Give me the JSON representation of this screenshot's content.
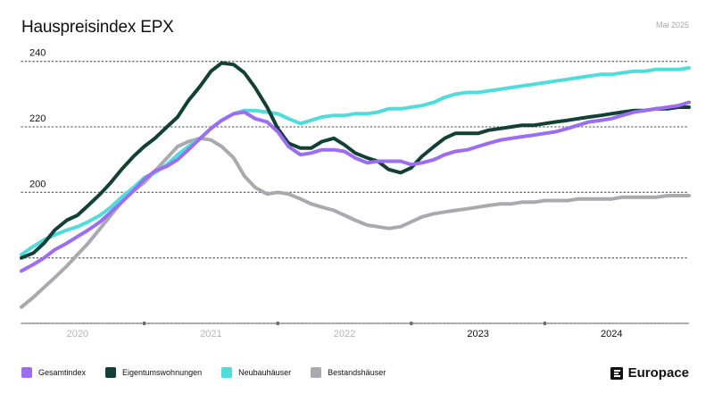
{
  "title": "Hauspreisindex EPX",
  "date_label": "Mai 2025",
  "brand": {
    "name": "Europace"
  },
  "colors": {
    "gesamtindex": "#9c6cf2",
    "eigentum": "#123f36",
    "neubau": "#4fdcdc",
    "bestand": "#a9a9b0",
    "grid": "#6b6b6b",
    "axis": "#6b6b6b",
    "tick_text": "#b5b5b5"
  },
  "chart_data": {
    "type": "line",
    "title": "Hauspreisindex EPX",
    "xlabel": "",
    "ylabel": "",
    "xlim": [
      2019.58,
      2024.58
    ],
    "ylim": [
      160,
      250
    ],
    "y_ticks": [
      160,
      180,
      200,
      220,
      240
    ],
    "y_tick_labels": [
      "",
      "",
      "200",
      "220",
      "240"
    ],
    "x_ticks": [
      2020,
      2021,
      2022,
      2023,
      2024
    ],
    "x_tick_labels": [
      "2020",
      "2021",
      "2022",
      "2023",
      "2024"
    ],
    "x_tick_emphasis": [
      false,
      false,
      false,
      true,
      true
    ],
    "x_dividers": [
      2020.5,
      2021.5,
      2022.5,
      2023.5
    ],
    "grid": true,
    "legend_position": "bottom-left",
    "series": [
      {
        "name": "Gesamtindex",
        "color_key": "gesamtindex",
        "x": [
          2019.58,
          2019.67,
          2019.75,
          2019.83,
          2019.92,
          2020.0,
          2020.08,
          2020.17,
          2020.25,
          2020.33,
          2020.42,
          2020.5,
          2020.58,
          2020.67,
          2020.75,
          2020.83,
          2020.92,
          2021.0,
          2021.08,
          2021.17,
          2021.25,
          2021.33,
          2021.42,
          2021.5,
          2021.58,
          2021.67,
          2021.75,
          2021.83,
          2021.92,
          2022.0,
          2022.08,
          2022.17,
          2022.25,
          2022.33,
          2022.42,
          2022.5,
          2022.58,
          2022.67,
          2022.75,
          2022.83,
          2022.92,
          2023.0,
          2023.08,
          2023.17,
          2023.25,
          2023.33,
          2023.42,
          2023.5,
          2023.58,
          2023.67,
          2023.75,
          2023.83,
          2023.92,
          2024.0,
          2024.08,
          2024.17,
          2024.25,
          2024.33,
          2024.42,
          2024.5,
          2024.58
        ],
        "values": [
          176.0,
          178.0,
          180.0,
          182.5,
          184.5,
          186.5,
          188.5,
          191.0,
          194.0,
          197.0,
          200.5,
          204.0,
          206.5,
          208.0,
          210.0,
          213.0,
          216.5,
          219.5,
          222.0,
          224.0,
          224.5,
          222.5,
          221.5,
          218.5,
          214.0,
          211.5,
          212.0,
          213.0,
          213.0,
          212.5,
          210.5,
          209.0,
          209.5,
          209.5,
          209.5,
          208.5,
          209.0,
          210.0,
          211.5,
          212.5,
          213.0,
          214.0,
          215.0,
          216.0,
          216.5,
          217.0,
          217.5,
          218.0,
          218.5,
          219.5,
          220.5,
          221.5,
          222.0,
          222.5,
          223.5,
          224.5,
          225.0,
          225.5,
          226.0,
          226.5,
          227.5
        ]
      },
      {
        "name": "Eigentumswohnungen",
        "color_key": "eigentum",
        "x": [
          2019.58,
          2019.67,
          2019.75,
          2019.83,
          2019.92,
          2020.0,
          2020.08,
          2020.17,
          2020.25,
          2020.33,
          2020.42,
          2020.5,
          2020.58,
          2020.67,
          2020.75,
          2020.83,
          2020.92,
          2021.0,
          2021.08,
          2021.17,
          2021.25,
          2021.33,
          2021.42,
          2021.5,
          2021.58,
          2021.67,
          2021.75,
          2021.83,
          2021.92,
          2022.0,
          2022.08,
          2022.17,
          2022.25,
          2022.33,
          2022.42,
          2022.5,
          2022.58,
          2022.67,
          2022.75,
          2022.83,
          2022.92,
          2023.0,
          2023.08,
          2023.17,
          2023.25,
          2023.33,
          2023.42,
          2023.5,
          2023.58,
          2023.67,
          2023.75,
          2023.83,
          2023.92,
          2024.0,
          2024.08,
          2024.17,
          2024.25,
          2024.33,
          2024.42,
          2024.5,
          2024.58
        ],
        "values": [
          180.0,
          181.5,
          184.5,
          188.5,
          191.5,
          193.0,
          196.0,
          199.5,
          203.0,
          207.0,
          211.0,
          214.0,
          216.5,
          220.0,
          223.0,
          228.0,
          232.5,
          237.0,
          239.5,
          239.0,
          236.5,
          232.0,
          226.0,
          219.5,
          215.0,
          213.5,
          213.5,
          215.5,
          216.5,
          214.5,
          212.0,
          210.5,
          209.5,
          207.0,
          206.0,
          207.5,
          211.0,
          214.0,
          216.5,
          218.0,
          218.0,
          218.0,
          219.0,
          219.5,
          220.0,
          220.5,
          220.5,
          221.0,
          221.5,
          222.0,
          222.5,
          223.0,
          223.5,
          224.0,
          224.5,
          225.0,
          225.0,
          225.5,
          225.5,
          226.0,
          226.0
        ]
      },
      {
        "name": "Neubauhäuser",
        "color_key": "neubau",
        "x": [
          2019.58,
          2019.67,
          2019.75,
          2019.83,
          2019.92,
          2020.0,
          2020.08,
          2020.17,
          2020.25,
          2020.33,
          2020.42,
          2020.5,
          2020.58,
          2020.67,
          2020.75,
          2020.83,
          2020.92,
          2021.0,
          2021.08,
          2021.17,
          2021.25,
          2021.33,
          2021.42,
          2021.5,
          2021.58,
          2021.67,
          2021.75,
          2021.83,
          2021.92,
          2022.0,
          2022.08,
          2022.17,
          2022.25,
          2022.33,
          2022.42,
          2022.5,
          2022.58,
          2022.67,
          2022.75,
          2022.83,
          2022.92,
          2023.0,
          2023.08,
          2023.17,
          2023.25,
          2023.33,
          2023.42,
          2023.5,
          2023.58,
          2023.67,
          2023.75,
          2023.83,
          2023.92,
          2024.0,
          2024.08,
          2024.17,
          2024.25,
          2024.33,
          2024.42,
          2024.5,
          2024.58
        ],
        "values": [
          181.0,
          183.5,
          185.5,
          187.0,
          188.5,
          189.5,
          191.0,
          193.0,
          195.5,
          198.5,
          201.5,
          204.5,
          206.0,
          208.5,
          211.5,
          214.0,
          216.5,
          219.5,
          222.0,
          224.0,
          225.0,
          225.0,
          224.5,
          224.0,
          222.5,
          221.0,
          222.0,
          223.0,
          223.5,
          223.5,
          224.0,
          224.0,
          224.5,
          225.5,
          225.5,
          226.0,
          226.5,
          227.5,
          229.0,
          230.0,
          230.5,
          230.5,
          231.0,
          231.5,
          232.0,
          232.5,
          233.0,
          233.5,
          234.0,
          234.5,
          235.0,
          235.5,
          236.0,
          236.0,
          236.5,
          237.0,
          237.0,
          237.5,
          237.5,
          237.5,
          238.0
        ]
      },
      {
        "name": "Bestandshäuser",
        "color_key": "bestand",
        "x": [
          2019.58,
          2019.67,
          2019.75,
          2019.83,
          2019.92,
          2020.0,
          2020.08,
          2020.17,
          2020.25,
          2020.33,
          2020.42,
          2020.5,
          2020.58,
          2020.67,
          2020.75,
          2020.83,
          2020.92,
          2021.0,
          2021.08,
          2021.17,
          2021.25,
          2021.33,
          2021.42,
          2021.5,
          2021.58,
          2021.67,
          2021.75,
          2021.83,
          2021.92,
          2022.0,
          2022.08,
          2022.17,
          2022.25,
          2022.33,
          2022.42,
          2022.5,
          2022.58,
          2022.67,
          2022.75,
          2022.83,
          2022.92,
          2023.0,
          2023.08,
          2023.17,
          2023.25,
          2023.33,
          2023.42,
          2023.5,
          2023.58,
          2023.67,
          2023.75,
          2023.83,
          2023.92,
          2024.0,
          2024.08,
          2024.17,
          2024.25,
          2024.33,
          2024.42,
          2024.5,
          2024.58
        ],
        "values": [
          165.0,
          168.0,
          171.0,
          174.0,
          177.5,
          181.0,
          184.5,
          189.0,
          193.0,
          197.0,
          200.5,
          203.0,
          206.5,
          210.5,
          214.0,
          215.5,
          216.5,
          216.0,
          214.0,
          210.5,
          205.0,
          201.5,
          199.5,
          200.0,
          199.5,
          198.0,
          196.5,
          195.5,
          194.5,
          193.0,
          191.5,
          190.0,
          189.5,
          189.0,
          189.5,
          191.0,
          192.5,
          193.5,
          194.0,
          194.5,
          195.0,
          195.5,
          196.0,
          196.5,
          196.5,
          197.0,
          197.0,
          197.5,
          197.5,
          197.5,
          198.0,
          198.0,
          198.0,
          198.0,
          198.5,
          198.5,
          198.5,
          198.5,
          199.0,
          199.0,
          199.0
        ]
      }
    ]
  }
}
